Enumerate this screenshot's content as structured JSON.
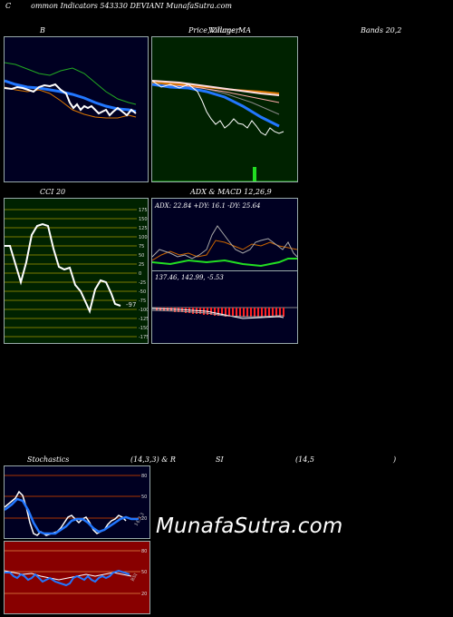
{
  "header": {
    "title_c": "C",
    "title_rest": "ommon  Indicators 543330  DEVIANI MunafaSutra.com"
  },
  "labels": {
    "b": "B",
    "price_a": "Price,",
    "price_b": "Volume,",
    "price_c": "Villager",
    "price_ma": "MA",
    "bands": "Bands 20,2",
    "cci": "CCI 20",
    "adx_title": "ADX  & MACD 12,26,9",
    "adx_values": "ADX: 22.84  +DY: 16.1 -DY: 25.64",
    "macd_values": "137.46,   142.99,  -5.53",
    "stoch_a": "Stochastics",
    "stoch_b": "(14,3,3) & R",
    "stoch_c": "SI",
    "stoch_d": "(14,5",
    "stoch_e": ")",
    "cci_value": "-97",
    "watermark": "MunafaSutra.com"
  },
  "cci_ticks": [
    "175",
    "150",
    "125",
    "100",
    "75",
    "50",
    "25",
    "0",
    "-25",
    "-50",
    "-75",
    "-100",
    "-125",
    "-150",
    "-175"
  ],
  "stoch_ticks": [
    "80",
    "50",
    "20"
  ],
  "rsi_ticks": [
    "80",
    "50",
    "20"
  ],
  "stoch_side": "14,3,3",
  "rsi_side": "RSI",
  "colors": {
    "panel_navy": "#000022",
    "panel_green": "#002200",
    "panel_red": "#880000",
    "grid_olive": "#7a7a00",
    "blue": "#2277ff",
    "orange": "#dd7700",
    "lime": "#22dd22"
  }
}
